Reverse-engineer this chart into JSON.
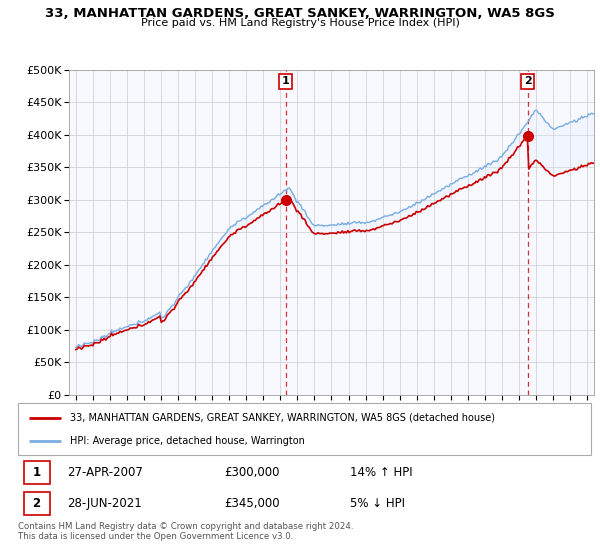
{
  "title": "33, MANHATTAN GARDENS, GREAT SANKEY, WARRINGTON, WA5 8GS",
  "subtitle": "Price paid vs. HM Land Registry's House Price Index (HPI)",
  "ylim": [
    0,
    500000
  ],
  "yticks": [
    0,
    50000,
    100000,
    150000,
    200000,
    250000,
    300000,
    350000,
    400000,
    450000,
    500000
  ],
  "legend_line1": "33, MANHATTAN GARDENS, GREAT SANKEY, WARRINGTON, WA5 8GS (detached house)",
  "legend_line2": "HPI: Average price, detached house, Warrington",
  "transaction1_date": "27-APR-2007",
  "transaction1_price": "£300,000",
  "transaction1_hpi": "14% ↑ HPI",
  "transaction2_date": "28-JUN-2021",
  "transaction2_price": "£345,000",
  "transaction2_hpi": "5% ↓ HPI",
  "footer": "Contains HM Land Registry data © Crown copyright and database right 2024.\nThis data is licensed under the Open Government Licence v3.0.",
  "red_color": "#cc0000",
  "blue_color": "#7aade0",
  "fill_color": "#ddeeff",
  "marker1_x": 2007.32,
  "marker1_y": 300000,
  "marker2_x": 2021.5,
  "marker2_y": 345000,
  "vline1_x": 2007.32,
  "vline2_x": 2021.5,
  "xmin": 1994.6,
  "xmax": 2025.4
}
